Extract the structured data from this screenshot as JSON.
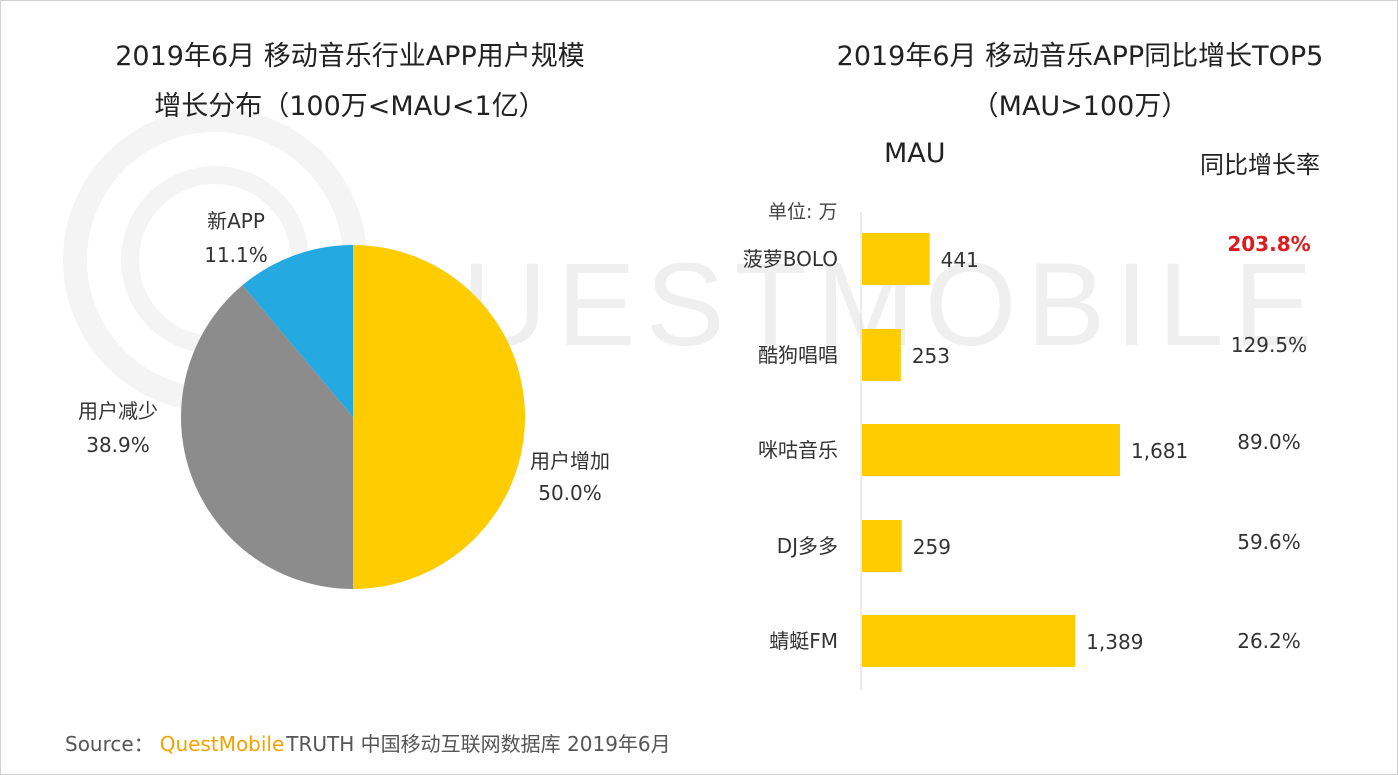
{
  "left_title": {
    "line1": "2019年6月 移动音乐行业APP用户规模",
    "line2": "增长分布（100万<MAU<1亿）"
  },
  "right_title": {
    "line1": "2019年6月 移动音乐APP同比增长TOP5",
    "line2": "（MAU>100万）"
  },
  "mau_header": "MAU",
  "growth_header": "同比增长率",
  "unit_label": "单位: 万",
  "watermark_text": "QUESTMOBILE",
  "source": {
    "prefix": "Source：",
    "brand": "QuestMobile",
    "rest": "TRUTH 中国移动互联网数据库 2019年6月"
  },
  "colors": {
    "yellow": "#FFCC00",
    "gray": "#8C8C8C",
    "blue": "#24A9E1",
    "highlight_red": "#E0191D"
  },
  "chart_data": [
    {
      "type": "pie",
      "title": "2019年6月 移动音乐行业APP用户规模增长分布（100万<MAU<1亿）",
      "slices": [
        {
          "label": "用户增加",
          "value": 50.0,
          "display": "50.0%",
          "color": "#FFCC00"
        },
        {
          "label": "用户减少",
          "value": 38.9,
          "display": "38.9%",
          "color": "#8C8C8C"
        },
        {
          "label": "新APP",
          "value": 11.1,
          "display": "11.1%",
          "color": "#24A9E1"
        }
      ]
    },
    {
      "type": "bar",
      "orientation": "horizontal",
      "title": "2019年6月 移动音乐APP同比增长TOP5（MAU>100万）",
      "categories": [
        "菠萝BOLO",
        "酷狗唱唱",
        "咪咕音乐",
        "DJ多多",
        "蜻蜓FM"
      ],
      "values": [
        441,
        253,
        1681,
        259,
        1389
      ],
      "value_labels": [
        "441",
        "253",
        "1,681",
        "259",
        "1,389"
      ],
      "xlabel": "MAU",
      "unit": "万",
      "color": "#FFCC00",
      "growth_rate": [
        "203.8%",
        "129.5%",
        "89.0%",
        "59.6%",
        "26.2%"
      ],
      "growth_highlight_index": 0
    }
  ]
}
